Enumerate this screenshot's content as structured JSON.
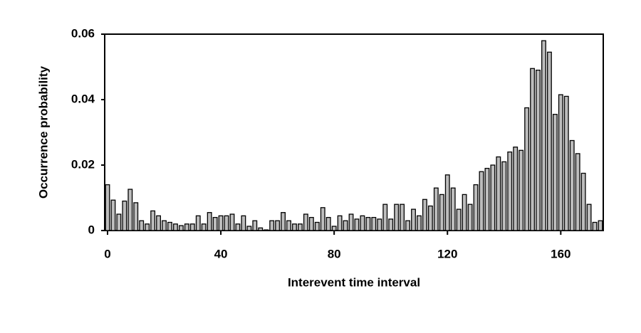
{
  "chart_data": {
    "type": "histogram",
    "xlabel": "Interevent time interval",
    "ylabel": "Occurrence probability",
    "color": "#bdbdbd",
    "bins": [
      -1,
      1,
      3,
      5,
      7,
      9,
      11,
      13,
      15,
      17,
      19,
      21,
      23,
      25,
      27,
      29,
      31,
      33,
      35,
      37,
      39,
      41,
      43,
      45,
      47,
      49,
      51,
      53,
      55,
      57,
      59,
      61,
      63,
      65,
      67,
      69,
      71,
      73,
      75,
      77,
      79,
      81,
      83,
      85,
      87,
      89,
      91,
      93,
      95,
      97,
      99,
      101,
      103,
      105,
      107,
      109,
      111,
      113,
      115,
      117,
      119,
      121,
      123,
      125,
      127,
      129,
      131,
      133,
      135,
      137,
      139,
      141,
      143,
      145,
      147,
      149,
      151,
      153,
      155,
      157,
      159,
      161,
      163,
      165,
      167,
      169,
      171,
      173,
      175
    ],
    "values": [
      0.014,
      0.0093,
      0.005,
      0.009,
      0.0126,
      0.0085,
      0.003,
      0.002,
      0.006,
      0.0045,
      0.003,
      0.0025,
      0.002,
      0.0015,
      0.002,
      0.002,
      0.0045,
      0.002,
      0.0055,
      0.004,
      0.0045,
      0.0045,
      0.005,
      0.002,
      0.0045,
      0.0013,
      0.003,
      0.0008,
      0.0002,
      0.003,
      0.003,
      0.0055,
      0.003,
      0.002,
      0.002,
      0.005,
      0.004,
      0.0025,
      0.007,
      0.004,
      0.0013,
      0.0045,
      0.003,
      0.005,
      0.0035,
      0.0045,
      0.004,
      0.004,
      0.0035,
      0.008,
      0.0035,
      0.008,
      0.008,
      0.003,
      0.0065,
      0.0045,
      0.0095,
      0.0075,
      0.013,
      0.011,
      0.017,
      0.013,
      0.0065,
      0.011,
      0.008,
      0.014,
      0.018,
      0.019,
      0.02,
      0.0225,
      0.021,
      0.024,
      0.0255,
      0.0245,
      0.0375,
      0.0495,
      0.049,
      0.058,
      0.0545,
      0.0355,
      0.0415,
      0.041,
      0.0275,
      0.0235,
      0.0175,
      0.008,
      0.0025,
      0.003
    ],
    "xlim": [
      -1,
      175
    ],
    "ylim": [
      0,
      0.06
    ],
    "xticks": [
      0,
      40,
      80,
      120,
      160
    ],
    "yticks": [
      0,
      0.02,
      0.04,
      0.06
    ]
  }
}
